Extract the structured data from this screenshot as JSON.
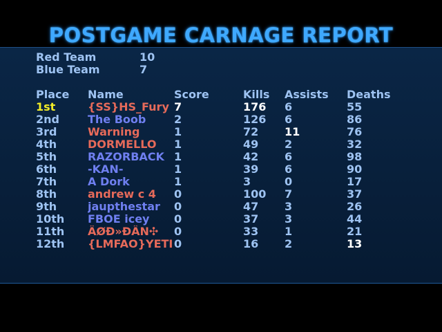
{
  "title": "POSTGAME CARNAGE REPORT",
  "teams": [
    {
      "name": "Red Team",
      "score": "10"
    },
    {
      "name": "Blue Team",
      "score": "7"
    }
  ],
  "headers": {
    "place": "Place",
    "name": "Name",
    "score": "Score",
    "kills": "Kills",
    "assists": "Assists",
    "deaths": "Deaths"
  },
  "players": [
    {
      "place": "1st",
      "name": "{SS}HS_Fury",
      "team": "red",
      "score": "7",
      "kills": "176",
      "assists": "6",
      "deaths": "55"
    },
    {
      "place": "2nd",
      "name": "The Boob",
      "team": "blue",
      "score": "2",
      "kills": "126",
      "assists": "6",
      "deaths": "86"
    },
    {
      "place": "3rd",
      "name": "Warning",
      "team": "red",
      "score": "1",
      "kills": "72",
      "assists": "11",
      "deaths": "76"
    },
    {
      "place": "4th",
      "name": "DORMELLO",
      "team": "red",
      "score": "1",
      "kills": "49",
      "assists": "2",
      "deaths": "32"
    },
    {
      "place": "5th",
      "name": "RAZORBACK",
      "team": "blue",
      "score": "1",
      "kills": "42",
      "assists": "6",
      "deaths": "98"
    },
    {
      "place": "6th",
      "name": "-KAN-",
      "team": "blue",
      "score": "1",
      "kills": "39",
      "assists": "6",
      "deaths": "90"
    },
    {
      "place": "7th",
      "name": "A Dork",
      "team": "blue",
      "score": "1",
      "kills": "3",
      "assists": "0",
      "deaths": "17"
    },
    {
      "place": "8th",
      "name": "andrew c 4",
      "team": "red",
      "score": "0",
      "kills": "100",
      "assists": "7",
      "deaths": "37"
    },
    {
      "place": "9th",
      "name": "jaupthestar",
      "team": "blue",
      "score": "0",
      "kills": "47",
      "assists": "3",
      "deaths": "26"
    },
    {
      "place": "10th",
      "name": "FBOE icey",
      "team": "blue",
      "score": "0",
      "kills": "37",
      "assists": "3",
      "deaths": "44"
    },
    {
      "place": "11th",
      "name": "ÂØÐ»ÐÂN✣",
      "team": "red",
      "score": "0",
      "kills": "33",
      "assists": "1",
      "deaths": "21"
    },
    {
      "place": "12th",
      "name": "{LMFAO}YETI",
      "team": "red",
      "score": "0",
      "kills": "16",
      "assists": "2",
      "deaths": "13"
    }
  ],
  "colors": {
    "title": "#3fa9ff",
    "label": "#9ec3f2",
    "red_team": "#e66a5a",
    "blue_team": "#6f7ff0",
    "first_place": "#f2ec28",
    "best_stat": "#ffffff",
    "panel": "#0a2646"
  },
  "best_stats": {
    "score": 0,
    "kills": 0,
    "assists": 2,
    "deaths": 11
  }
}
